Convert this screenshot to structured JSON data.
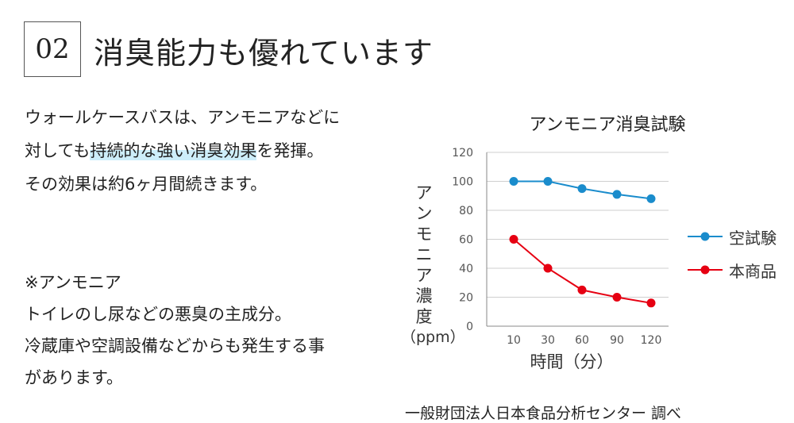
{
  "section": {
    "number": "02",
    "title": "消臭能力も優れています"
  },
  "description": {
    "line1": "ウォールケースバスは、アンモニアなどに",
    "line2_pre": "対しても",
    "line2_highlight": "持続的な強い消臭効果",
    "line2_post": "を発揮。",
    "line3": "その効果は約6ヶ月間続きます。"
  },
  "note": {
    "line1": "※アンモニア",
    "line2": "トイレのし尿などの悪臭の主成分。",
    "line3": "冷蔵庫や空調設備などからも発生する事",
    "line4": "があります。"
  },
  "chart_data": {
    "type": "line",
    "title": "アンモニア消臭試験",
    "ylabel": [
      "ア",
      "ン",
      "モ",
      "ニ",
      "ア",
      "濃",
      "度"
    ],
    "yunit": "（ppm）",
    "xlabel": "時間（分）",
    "categories": [
      "10",
      "30",
      "60",
      "90",
      "120"
    ],
    "yticks": [
      "0",
      "20",
      "40",
      "60",
      "80",
      "100",
      "120"
    ],
    "ylim": [
      0,
      120
    ],
    "grid": true,
    "legend_position": "right",
    "series": [
      {
        "name": "空試験",
        "color": "#1a8ccc",
        "values": [
          100,
          100,
          95,
          91,
          88
        ]
      },
      {
        "name": "本商品",
        "color": "#e60012",
        "values": [
          60,
          40,
          25,
          20,
          16
        ]
      }
    ]
  },
  "source": "一般財団法人日本食品分析センター 調べ"
}
